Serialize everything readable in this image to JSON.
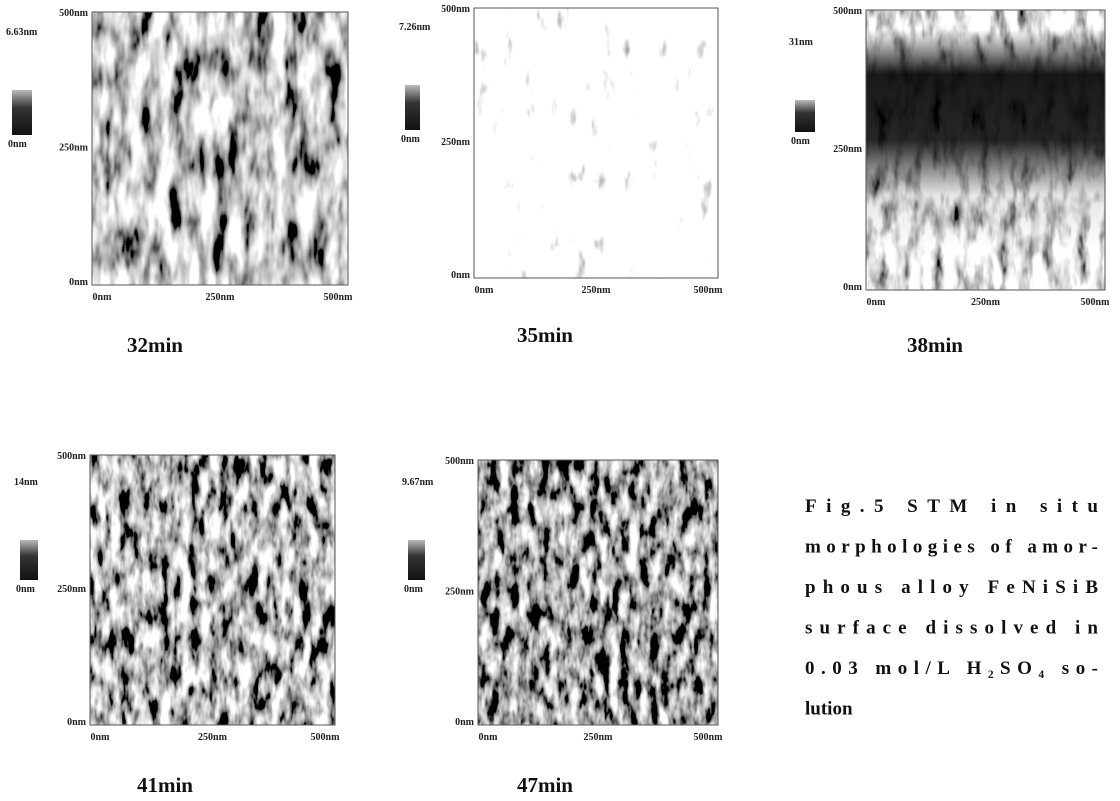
{
  "panels": [
    {
      "scale_max": "6.63nm",
      "scale_min": "0nm",
      "y_labels": [
        "500nm",
        "250nm",
        "0nm"
      ],
      "x_labels": [
        "0nm",
        "250nm",
        "500nm"
      ],
      "time": "32min"
    },
    {
      "scale_max": "7.26nm",
      "scale_min": "0nm",
      "y_labels": [
        "500nm",
        "250nm",
        "0nm"
      ],
      "x_labels": [
        "0nm",
        "250nm",
        "500nm"
      ],
      "time": "35min"
    },
    {
      "scale_max": "31nm",
      "scale_min": "0nm",
      "y_labels": [
        "500nm",
        "250nm",
        "0nm"
      ],
      "x_labels": [
        "0nm",
        "250nm",
        "500nm"
      ],
      "time": "38min"
    },
    {
      "scale_max": "14nm",
      "scale_min": "0nm",
      "y_labels": [
        "500nm",
        "250nm",
        "0nm"
      ],
      "x_labels": [
        "0nm",
        "250nm",
        "500nm"
      ],
      "time": "41min"
    },
    {
      "scale_max": "9.67nm",
      "scale_min": "0nm",
      "y_labels": [
        "500nm",
        "250nm",
        "0nm"
      ],
      "x_labels": [
        "0nm",
        "250nm",
        "500nm"
      ],
      "time": "47min"
    }
  ],
  "caption": {
    "lines": [
      "Fig.5 STM in situ",
      "morphologies of amor-",
      "phous alloy FeNiSiB",
      "surface dissolved in",
      "0.03 mol/L H₂SO₄ so-",
      "lution"
    ]
  }
}
